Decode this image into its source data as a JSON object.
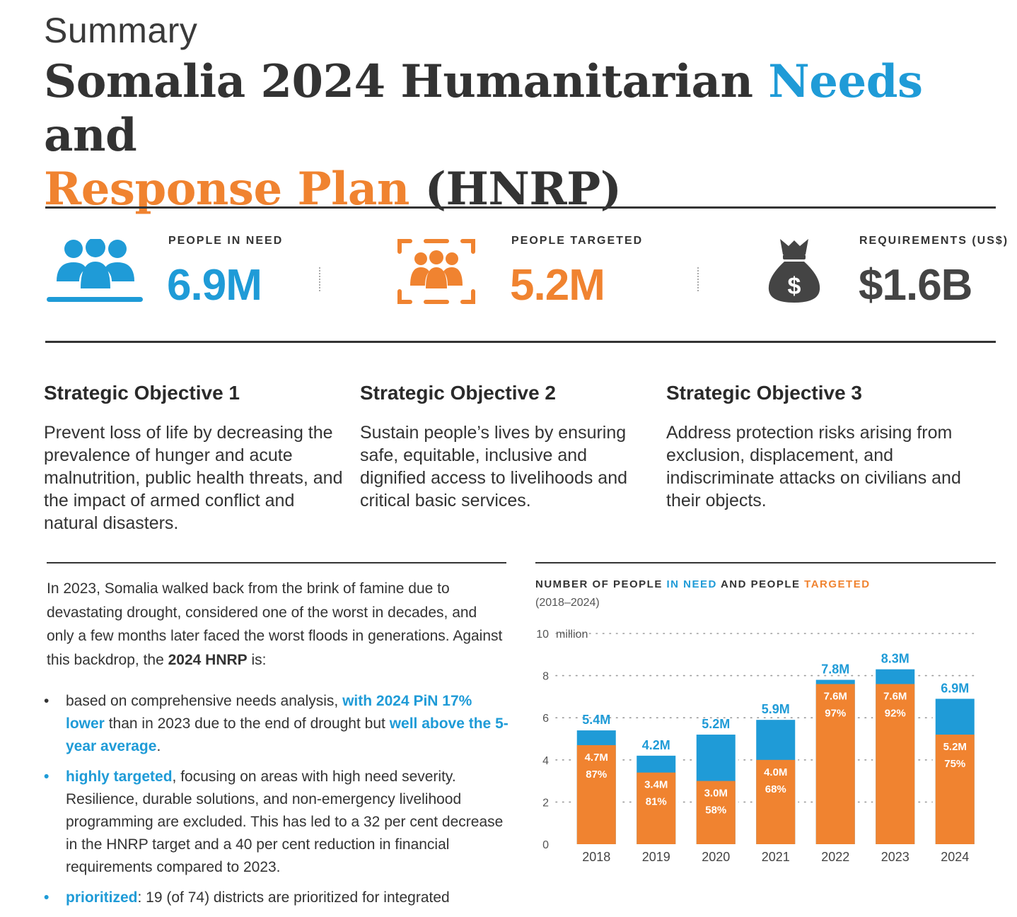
{
  "header": {
    "eyebrow": "Summary",
    "title_part1": "Somalia 2024 Humanitarian ",
    "title_needs": "Needs",
    "title_part2": " and ",
    "title_response": "Response Plan",
    "title_part3": " (HNRP)"
  },
  "stats": [
    {
      "label": "PEOPLE IN NEED",
      "value": "6.9M",
      "icon": "people-group-icon",
      "color": "#1f9bd7"
    },
    {
      "label": "PEOPLE TARGETED",
      "value": "5.2M",
      "icon": "people-targeted-icon",
      "color": "#f08330"
    },
    {
      "label": "REQUIREMENTS (US$)",
      "value": "$1.6B",
      "icon": "money-bag-icon",
      "color": "#444444"
    }
  ],
  "objectives": [
    {
      "title": "Strategic Objective 1",
      "body": "Prevent loss of life by decreasing the prevalence of hunger and acute malnutrition, public health threats, and the impact of armed conflict and natural disasters."
    },
    {
      "title": "Strategic Objective 2",
      "body": "Sustain people’s lives by ensuring safe, equitable, inclusive and dignified access to livelihoods and critical basic services."
    },
    {
      "title": "Strategic Objective 3",
      "body": "Address protection risks arising from exclusion, displacement, and indiscriminate attacks on civilians and their objects."
    }
  ],
  "intro": {
    "text": "In 2023, Somalia walked back from the brink of famine due to devastating drought, considered one of the worst in decades, and only a few months later faced the worst floods in generations. Against this backdrop, the ",
    "bold": "2024 HNRP",
    "text_end": " is:"
  },
  "bullets": [
    {
      "marker": "•",
      "p1": "based on comprehensive needs analysis, ",
      "h1": "with 2024 PiN 17% lower",
      "p2": " than in 2023 due to the end of drought but ",
      "h2": "well above the 5-year average",
      "p3": "."
    },
    {
      "marker": "•",
      "h1": "highly targeted",
      "p1": ", focusing on areas with high need severity. Resilience, durable solutions, and non-emergency livelihood programming are excluded. This has led to a 32 per cent decrease in the HNRP target and a 40 per cent reduction in financial requirements compared to 2023."
    },
    {
      "marker": "•",
      "h1": "prioritized",
      "p1": ": 19 (of 74) districts are prioritized for integrated"
    }
  ],
  "chart": {
    "title_p1": "NUMBER OF PEOPLE ",
    "title_need": "IN NEED",
    "title_p2": " AND PEOPLE ",
    "title_targeted": "TARGETED",
    "subtitle": "(2018–2024)"
  },
  "chart_data": {
    "type": "bar",
    "categories": [
      "2018",
      "2019",
      "2020",
      "2021",
      "2022",
      "2023",
      "2024"
    ],
    "series": [
      {
        "name": "IN NEED",
        "values": [
          5.4,
          4.2,
          5.2,
          5.9,
          7.8,
          8.3,
          6.9
        ],
        "labels": [
          "5.4M",
          "4.2M",
          "5.2M",
          "5.9M",
          "7.8M",
          "8.3M",
          "6.9M"
        ],
        "color": "#1f9bd7"
      },
      {
        "name": "TARGETED",
        "values": [
          4.7,
          3.4,
          3.0,
          4.0,
          7.6,
          7.6,
          5.2
        ],
        "labels": [
          "4.7M",
          "3.4M",
          "3.0M",
          "4.0M",
          "7.6M",
          "7.6M",
          "5.2M"
        ],
        "color": "#f08330"
      }
    ],
    "percent_labels": [
      "87%",
      "81%",
      "58%",
      "68%",
      "97%",
      "92%",
      "75%"
    ],
    "y_ticks": [
      "0",
      "2",
      "4",
      "6",
      "8",
      "10"
    ],
    "y_unit": "million",
    "ylim": [
      0,
      10
    ],
    "grid": "dotted"
  }
}
